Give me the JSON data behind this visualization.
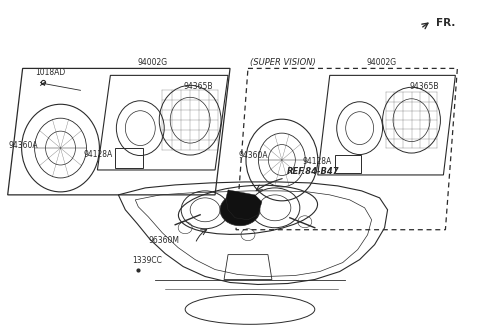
{
  "bg_color": "#ffffff",
  "lc": "#2a2a2a",
  "fs": 5.5,
  "fs_fr": 7.5,
  "fr_label": "FR.",
  "label_1018AD": "1018AD",
  "label_94002G_L": "94002G",
  "label_94365B_L": "94365B",
  "label_94128A_L": "94128A",
  "label_94360A_L": "94360A",
  "label_SUPER": "(SUPER VISION)",
  "label_94002G_R": "94002G",
  "label_94365B_R": "94365B",
  "label_94128A_R": "94128A",
  "label_94360A_R": "94360A",
  "label_REF": "REF.84-B47",
  "label_96360M": "96360M",
  "label_1339CC": "1339CC"
}
